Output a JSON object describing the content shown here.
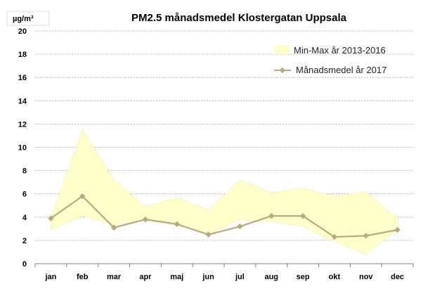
{
  "chart_data": {
    "type": "area",
    "title": "PM2.5 månadsmedel Klostergatan Uppsala",
    "ylabel": "µg/m³",
    "xlabel": "",
    "categories": [
      "jan",
      "feb",
      "mar",
      "apr",
      "maj",
      "jun",
      "jul",
      "aug",
      "sep",
      "okt",
      "nov",
      "dec"
    ],
    "ylim": [
      0,
      20
    ],
    "yticks": [
      0,
      2,
      4,
      6,
      8,
      10,
      12,
      14,
      16,
      18,
      20
    ],
    "grid": true,
    "legend_position": "top-right",
    "series": [
      {
        "name": "Min-Max år 2013-2016",
        "kind": "band",
        "min": [
          2.9,
          4.1,
          3.3,
          3.8,
          3.3,
          2.5,
          3.8,
          3.6,
          3.2,
          1.9,
          0.8,
          3.0
        ],
        "max": [
          3.9,
          11.5,
          7.2,
          4.9,
          5.7,
          4.6,
          7.2,
          6.1,
          6.5,
          5.8,
          6.2,
          3.9
        ],
        "color": "#ffffcc",
        "edge_color": "#f2f2b8"
      },
      {
        "name": "Månadsmedel år 2017",
        "kind": "line",
        "values": [
          3.9,
          5.8,
          3.1,
          3.8,
          3.4,
          2.5,
          3.2,
          4.1,
          4.1,
          2.3,
          2.4,
          2.9
        ],
        "color": "#b7ab7f"
      }
    ]
  }
}
